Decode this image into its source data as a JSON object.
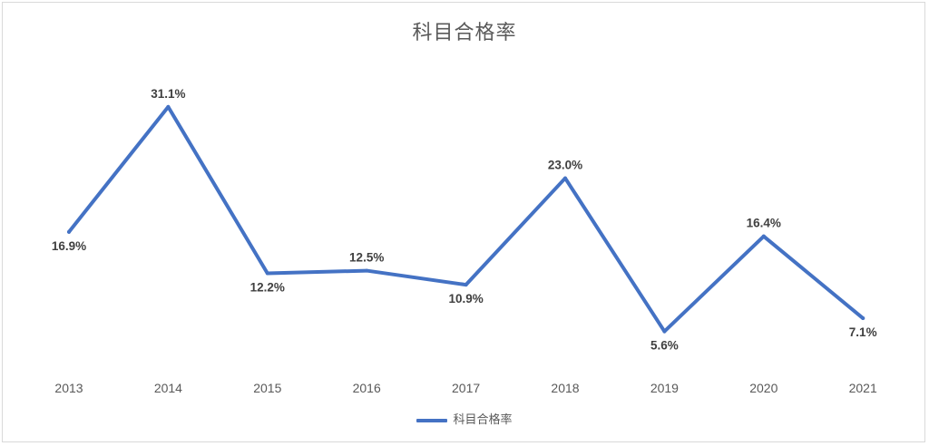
{
  "chart_data": {
    "type": "line",
    "title": "科目合格率",
    "categories": [
      "2013",
      "2014",
      "2015",
      "2016",
      "2017",
      "2018",
      "2019",
      "2020",
      "2021"
    ],
    "series": [
      {
        "name": "科目合格率",
        "values": [
          16.9,
          31.1,
          12.2,
          12.5,
          10.9,
          23.0,
          5.6,
          16.4,
          7.1
        ],
        "labels": [
          "16.9%",
          "31.1%",
          "12.2%",
          "12.5%",
          "10.9%",
          "23.0%",
          "5.6%",
          "16.4%",
          "7.1%"
        ],
        "color": "#4472c4"
      }
    ],
    "ylim": [
      0,
      35
    ],
    "grid": false,
    "legend": "bottom",
    "xlabel": "",
    "ylabel": ""
  }
}
